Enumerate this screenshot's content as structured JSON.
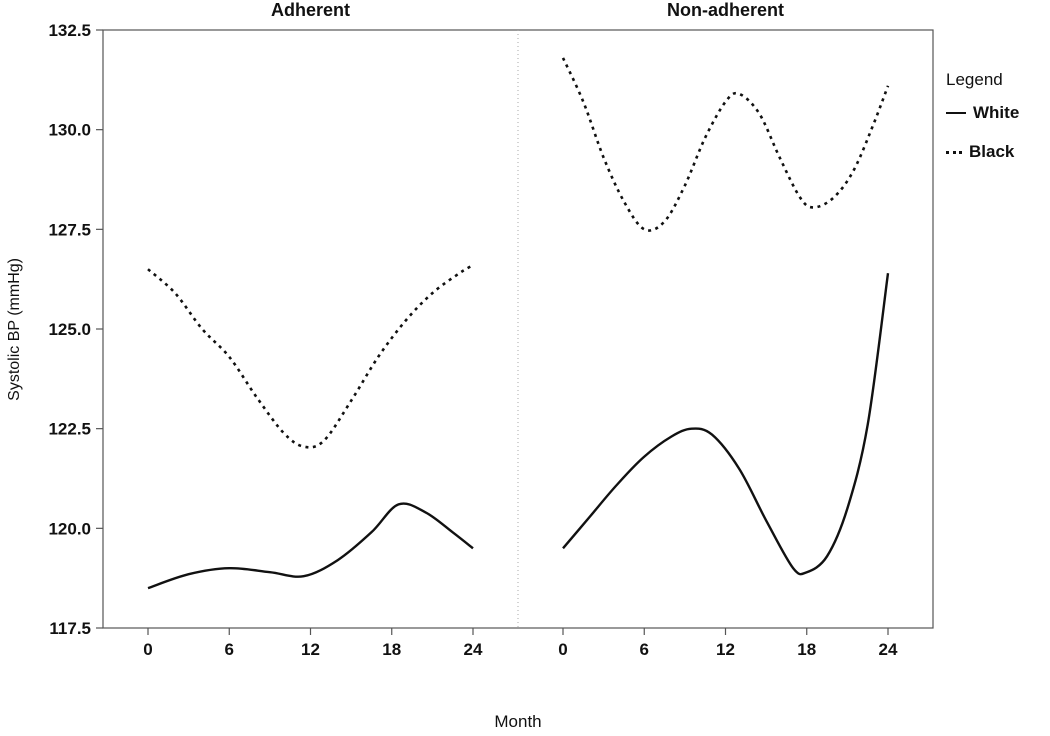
{
  "legend": {
    "title": "Legend",
    "items": [
      {
        "label": "White",
        "line_style": "solid"
      },
      {
        "label": "Black",
        "line_style": "dotted"
      }
    ]
  },
  "chart_data": {
    "type": "line",
    "title": "",
    "xlabel": "Month",
    "ylabel": "Systolic BP (mmHg)",
    "xlim": [
      0,
      24
    ],
    "ylim": [
      117.5,
      132.5
    ],
    "xticks": [
      0,
      6,
      12,
      18,
      24
    ],
    "yticks": [
      117.5,
      120.0,
      122.5,
      125.0,
      127.5,
      130.0,
      132.5
    ],
    "grid": false,
    "legend_position": "right",
    "panels": [
      {
        "title": "Adherent",
        "series": [
          {
            "name": "White",
            "line": "solid",
            "points": [
              [
                0,
                118.5
              ],
              [
                3,
                118.85
              ],
              [
                6,
                119.0
              ],
              [
                9,
                118.9
              ],
              [
                11.5,
                118.8
              ],
              [
                14,
                119.2
              ],
              [
                16.5,
                119.9
              ],
              [
                18.5,
                120.6
              ],
              [
                20.5,
                120.4
              ],
              [
                22.5,
                119.9
              ],
              [
                24,
                119.5
              ]
            ]
          },
          {
            "name": "Black",
            "line": "dotted",
            "points": [
              [
                0,
                126.5
              ],
              [
                2,
                125.9
              ],
              [
                4,
                125.0
              ],
              [
                6,
                124.3
              ],
              [
                8,
                123.3
              ],
              [
                10,
                122.4
              ],
              [
                11.5,
                122.05
              ],
              [
                13,
                122.2
              ],
              [
                15,
                123.2
              ],
              [
                17,
                124.3
              ],
              [
                19,
                125.2
              ],
              [
                21,
                125.9
              ],
              [
                23,
                126.4
              ],
              [
                24,
                126.6
              ]
            ]
          }
        ]
      },
      {
        "title": "Non-adherent",
        "series": [
          {
            "name": "White",
            "line": "solid",
            "points": [
              [
                0,
                119.5
              ],
              [
                2,
                120.3
              ],
              [
                4,
                121.1
              ],
              [
                6,
                121.8
              ],
              [
                8,
                122.3
              ],
              [
                9.5,
                122.5
              ],
              [
                11,
                122.35
              ],
              [
                13,
                121.5
              ],
              [
                15,
                120.2
              ],
              [
                17,
                119.0
              ],
              [
                18,
                118.9
              ],
              [
                19.5,
                119.3
              ],
              [
                21,
                120.5
              ],
              [
                22.5,
                122.6
              ],
              [
                24,
                126.4
              ]
            ]
          },
          {
            "name": "Black",
            "line": "dotted",
            "points": [
              [
                0,
                131.8
              ],
              [
                1.5,
                130.7
              ],
              [
                3,
                129.3
              ],
              [
                4.5,
                128.2
              ],
              [
                6,
                127.5
              ],
              [
                7.5,
                127.7
              ],
              [
                9,
                128.6
              ],
              [
                10.5,
                129.8
              ],
              [
                12,
                130.7
              ],
              [
                13,
                130.9
              ],
              [
                14.5,
                130.4
              ],
              [
                16,
                129.3
              ],
              [
                17.5,
                128.3
              ],
              [
                18.5,
                128.05
              ],
              [
                20,
                128.3
              ],
              [
                21.5,
                129.0
              ],
              [
                23,
                130.2
              ],
              [
                24,
                131.1
              ]
            ]
          }
        ]
      }
    ]
  }
}
